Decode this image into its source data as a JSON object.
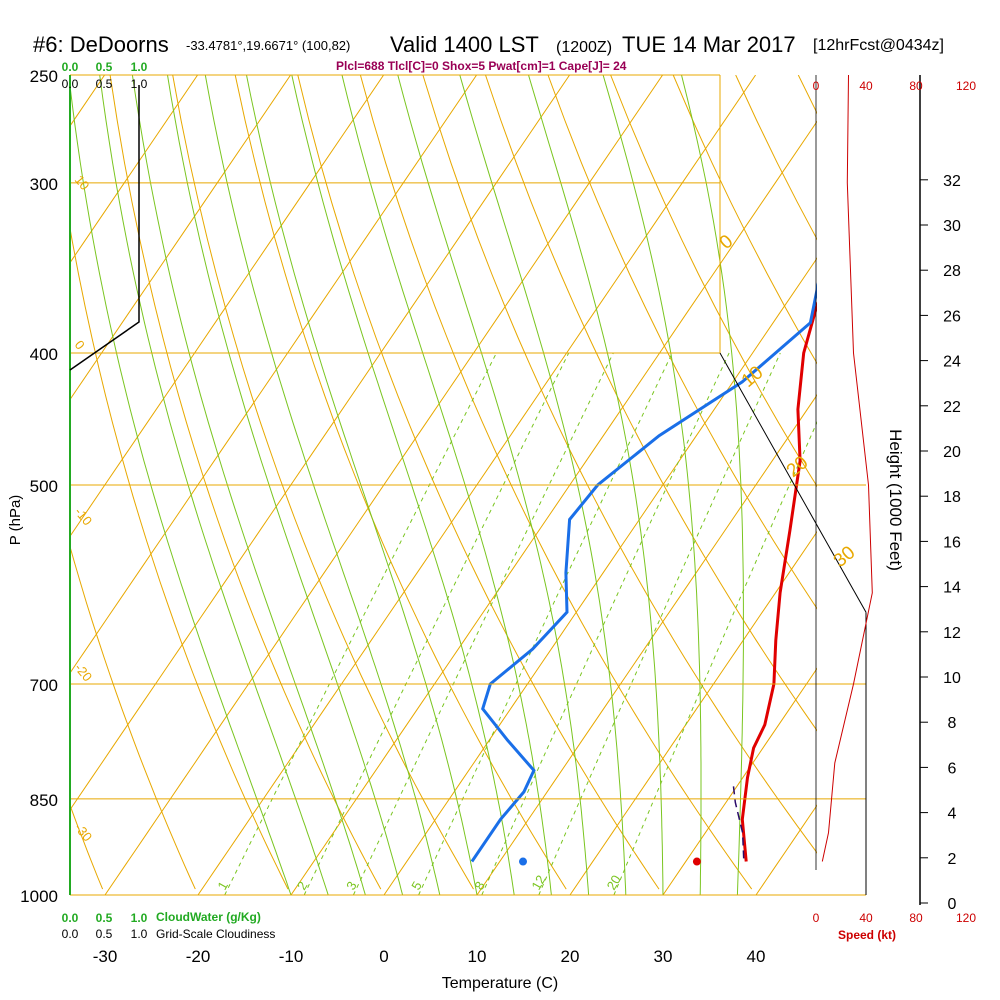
{
  "header": {
    "station": "#6: DeDoorns",
    "coords": "-33.4781°,19.6671° (100,82)",
    "valid": "Valid 1400 LST",
    "utc": "(1200Z)",
    "date": "TUE 14 Mar 2017",
    "forecast": "[12hrFcst@0434z]",
    "indices": "Plcl=688 Tlcl[C]=0 Shox=5 Pwat[cm]=1 Cape[J]= 24"
  },
  "axes": {
    "ylabel": "P (hPa)",
    "xlabel": "Temperature (C)",
    "height_label": "Height (1000 Feet)",
    "speed_label": "Speed (kt)",
    "cloudwater_label": "CloudWater (g/Kg)",
    "cloudiness_label": "Grid-Scale Cloudiness"
  },
  "colors": {
    "temperature": "#e00000",
    "dewpoint": "#1a6fe8",
    "isotherm": "#e8a800",
    "dry_adiabat": "#e8a800",
    "moist_adiabat": "#7ac520",
    "mixing_ratio": "#7ac520",
    "parcel": "#2a0a6a",
    "cloudwater": "#22aa22",
    "wind_speed": "#cc0000",
    "indices": "#990055"
  },
  "chart_data": {
    "type": "line",
    "title": "#6: DeDoorns Valid 1400 LST (1200Z) TUE 14 Mar 2017",
    "pressure_ticks": [
      250,
      300,
      400,
      500,
      700,
      850,
      1000
    ],
    "temperature_ticks": [
      -30,
      -20,
      -10,
      0,
      10,
      20,
      30,
      40
    ],
    "temperature_range": [
      -33.5,
      36
    ],
    "pressure_range": [
      250,
      1000
    ],
    "height_ticks_kft": [
      0,
      2,
      4,
      6,
      8,
      10,
      12,
      14,
      16,
      18,
      20,
      22,
      24,
      26,
      28,
      30,
      32
    ],
    "dry_adiabat_labels": [
      "30",
      "20",
      "10",
      "0",
      "-10",
      "-20",
      "-30"
    ],
    "isotherm_labels": [
      "0",
      "10",
      "20",
      "30"
    ],
    "mixing_ratio_labels": [
      "1",
      "2",
      "3",
      "5",
      "8",
      "12",
      "20"
    ],
    "cloud_ticks": [
      "0.0",
      "0.5",
      "1.0"
    ],
    "speed_ticks": [
      "0",
      "40",
      "80",
      "120"
    ],
    "series": [
      {
        "name": "Temperature",
        "points": [
          [
            -3.5,
            260
          ],
          [
            -1.5,
            300
          ],
          [
            2.5,
            350
          ],
          [
            3.5,
            370
          ],
          [
            5.5,
            400
          ],
          [
            9,
            440
          ],
          [
            13,
            480
          ],
          [
            17,
            540
          ],
          [
            20.5,
            600
          ],
          [
            23.5,
            650
          ],
          [
            26.5,
            700
          ],
          [
            28.5,
            750
          ],
          [
            29,
            780
          ],
          [
            30.5,
            820
          ],
          [
            33,
            880
          ],
          [
            36.5,
            945
          ]
        ]
      },
      {
        "name": "Dewpoint",
        "points": [
          [
            -7.5,
            260
          ],
          [
            -5,
            300
          ],
          [
            1.5,
            350
          ],
          [
            4,
            380
          ],
          [
            1,
            420
          ],
          [
            -4,
            460
          ],
          [
            -7,
            500
          ],
          [
            -7.5,
            530
          ],
          [
            -4,
            580
          ],
          [
            -1,
            620
          ],
          [
            -2,
            660
          ],
          [
            -4,
            700
          ],
          [
            -3,
            730
          ],
          [
            2,
            770
          ],
          [
            7,
            810
          ],
          [
            7.5,
            840
          ],
          [
            7,
            880
          ],
          [
            7,
            945
          ]
        ]
      },
      {
        "name": "Parcel",
        "points": [
          [
            36,
            940
          ],
          [
            34,
            900
          ],
          [
            31,
            855
          ],
          [
            29.5,
            830
          ]
        ]
      }
    ],
    "surface_temperature": 31.2,
    "surface_dewpoint": 12.5,
    "surface_pressure": 945,
    "wind_speed_profile_kt": [
      [
        5,
        945
      ],
      [
        10,
        900
      ],
      [
        15,
        800
      ],
      [
        30,
        700
      ],
      [
        45,
        600
      ],
      [
        42,
        500
      ],
      [
        30,
        400
      ],
      [
        25,
        300
      ],
      [
        26,
        250
      ]
    ]
  }
}
